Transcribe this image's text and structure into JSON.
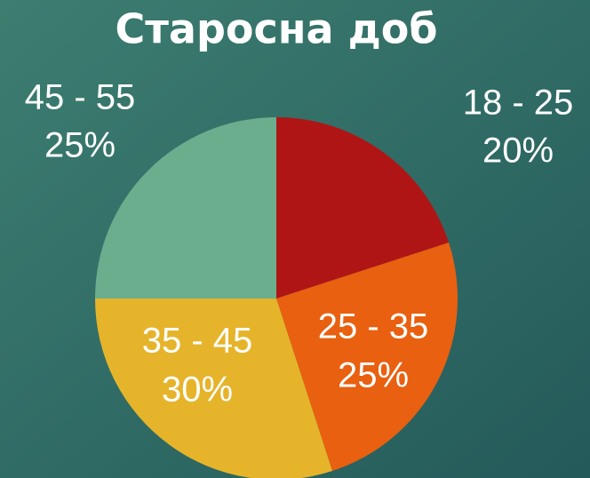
{
  "chart_data": {
    "type": "pie",
    "title": "Старосна доб",
    "categories": [
      "18 - 25",
      "25 - 35",
      "35 - 45",
      "45 - 55"
    ],
    "values": [
      20,
      25,
      30,
      25
    ],
    "value_labels": [
      "20%",
      "25%",
      "30%",
      "25%"
    ],
    "colors": [
      "#b01515",
      "#e86010",
      "#e6b42a",
      "#6aae8e"
    ]
  }
}
